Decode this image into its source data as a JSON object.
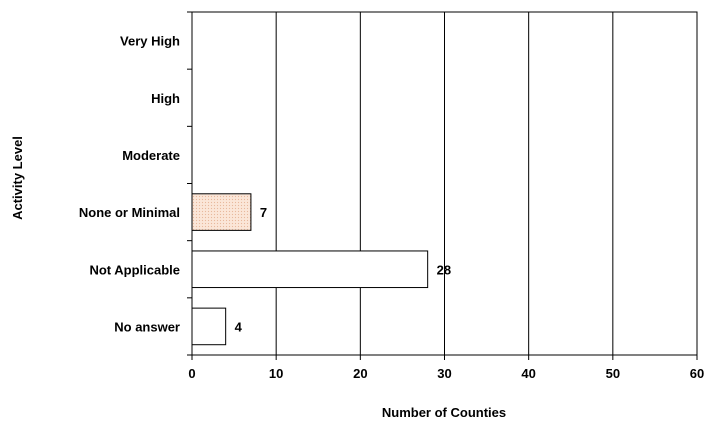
{
  "chart_data": {
    "type": "bar",
    "orientation": "horizontal",
    "categories": [
      "Very High",
      "High",
      "Moderate",
      "None or Minimal",
      "Not Applicable",
      "No answer"
    ],
    "values": [
      0,
      0,
      0,
      7,
      28,
      4
    ],
    "data_labels": [
      "",
      "",
      "",
      "7",
      "28",
      "4"
    ],
    "bar_fills": [
      "#ffffff",
      "#ffffff",
      "#ffffff",
      "#fbe6d8",
      "#ffffff",
      "#ffffff"
    ],
    "xlabel": "Number of Counties",
    "ylabel": "Activity Level",
    "xlim": [
      0,
      60
    ],
    "xticks": [
      0,
      10,
      20,
      30,
      40,
      50,
      60
    ],
    "xtick_labels": [
      "0",
      "10",
      "20",
      "30",
      "40",
      "50",
      "60"
    ],
    "grid": "vertical",
    "legend": "none"
  }
}
